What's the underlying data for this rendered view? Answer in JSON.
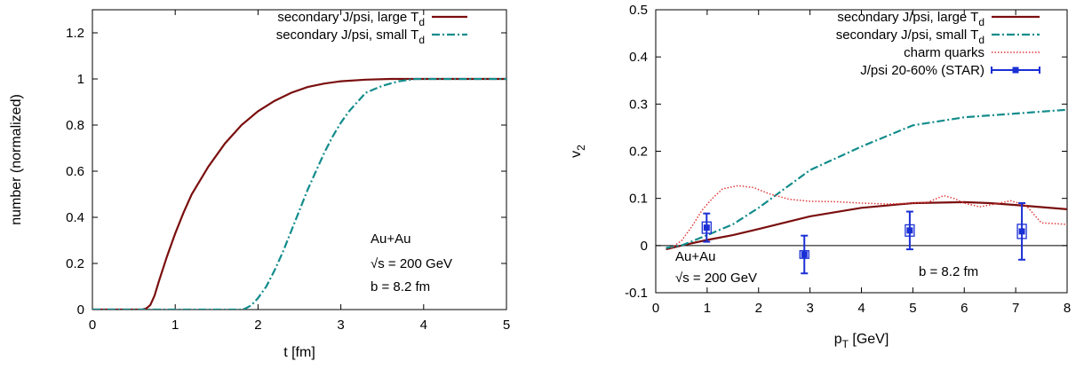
{
  "chart_data": [
    {
      "type": "line",
      "xlabel": "t [fm]",
      "ylabel": "number (normalized)",
      "xlim": [
        0,
        5
      ],
      "ylim": [
        0,
        1.3
      ],
      "xticks": [
        "0",
        "1",
        "2",
        "3",
        "4",
        "5"
      ],
      "yticks": [
        "0",
        "0.2",
        "0.4",
        "0.6",
        "0.8",
        "1",
        "1.2"
      ],
      "grid": false,
      "legend_position": "top-right",
      "annotations": [
        "Au+Au",
        "√s = 200 GeV",
        "b = 8.2 fm"
      ],
      "series": [
        {
          "name": "secondary J/psi, large T",
          "name_subscript": "d",
          "color": "#7a0e0e",
          "style": "solid",
          "points": [
            [
              0,
              0
            ],
            [
              0.6,
              0
            ],
            [
              0.65,
              0.005
            ],
            [
              0.7,
              0.02
            ],
            [
              0.75,
              0.06
            ],
            [
              0.8,
              0.12
            ],
            [
              0.9,
              0.23
            ],
            [
              1.0,
              0.33
            ],
            [
              1.1,
              0.42
            ],
            [
              1.2,
              0.5
            ],
            [
              1.4,
              0.62
            ],
            [
              1.6,
              0.72
            ],
            [
              1.8,
              0.8
            ],
            [
              2.0,
              0.86
            ],
            [
              2.2,
              0.905
            ],
            [
              2.4,
              0.94
            ],
            [
              2.6,
              0.965
            ],
            [
              2.8,
              0.98
            ],
            [
              3.0,
              0.99
            ],
            [
              3.3,
              0.997
            ],
            [
              3.6,
              1.0
            ],
            [
              5.0,
              1.0
            ]
          ]
        },
        {
          "name": "secondary J/psi, small T",
          "name_subscript": "d",
          "color": "#138c8c",
          "style": "dashdot",
          "points": [
            [
              0,
              0
            ],
            [
              1.8,
              0
            ],
            [
              1.85,
              0.005
            ],
            [
              1.9,
              0.015
            ],
            [
              1.95,
              0.03
            ],
            [
              2.0,
              0.05
            ],
            [
              2.1,
              0.1
            ],
            [
              2.2,
              0.17
            ],
            [
              2.3,
              0.25
            ],
            [
              2.4,
              0.34
            ],
            [
              2.5,
              0.43
            ],
            [
              2.6,
              0.52
            ],
            [
              2.7,
              0.6
            ],
            [
              2.8,
              0.68
            ],
            [
              2.9,
              0.75
            ],
            [
              3.0,
              0.81
            ],
            [
              3.1,
              0.86
            ],
            [
              3.2,
              0.9
            ],
            [
              3.3,
              0.94
            ],
            [
              3.5,
              0.97
            ],
            [
              3.7,
              0.99
            ],
            [
              3.9,
              1.0
            ],
            [
              5.0,
              1.0
            ]
          ]
        }
      ]
    },
    {
      "type": "line",
      "xlabel": "p",
      "xlabel_subscript": "T",
      "xlabel_suffix": " [GeV]",
      "ylabel": "v",
      "ylabel_subscript": "2",
      "xlim": [
        0,
        8
      ],
      "ylim": [
        -0.1,
        0.5
      ],
      "xticks": [
        "0",
        "1",
        "2",
        "3",
        "4",
        "5",
        "6",
        "7",
        "8"
      ],
      "yticks": [
        "-0.1",
        "0",
        "0.1",
        "0.2",
        "0.3",
        "0.4",
        "0.5"
      ],
      "grid": false,
      "legend_position": "top-right",
      "annotations": [
        "Au+Au",
        "√s = 200 GeV",
        "b = 8.2 fm"
      ],
      "series": [
        {
          "name": "secondary J/psi, large T",
          "name_subscript": "d",
          "color": "#7a0e0e",
          "style": "solid",
          "points": [
            [
              0.2,
              -0.008
            ],
            [
              0.5,
              0.0
            ],
            [
              1.0,
              0.012
            ],
            [
              1.5,
              0.022
            ],
            [
              2.0,
              0.035
            ],
            [
              3.0,
              0.062
            ],
            [
              4.0,
              0.08
            ],
            [
              5.0,
              0.09
            ],
            [
              6.0,
              0.092
            ],
            [
              6.5,
              0.09
            ],
            [
              7.0,
              0.086
            ],
            [
              8.0,
              0.077
            ]
          ]
        },
        {
          "name": "secondary J/psi, small T",
          "name_subscript": "d",
          "color": "#138c8c",
          "style": "dashdot",
          "points": [
            [
              0.2,
              -0.005
            ],
            [
              0.5,
              0.0
            ],
            [
              1.0,
              0.022
            ],
            [
              1.5,
              0.045
            ],
            [
              2.0,
              0.08
            ],
            [
              2.5,
              0.12
            ],
            [
              3.0,
              0.16
            ],
            [
              4.0,
              0.21
            ],
            [
              5.0,
              0.255
            ],
            [
              6.0,
              0.272
            ],
            [
              7.0,
              0.28
            ],
            [
              8.0,
              0.288
            ]
          ]
        },
        {
          "name": "charm quarks",
          "color": "#e03a3a",
          "style": "dotted",
          "points": [
            [
              0.3,
              -0.005
            ],
            [
              0.5,
              0.01
            ],
            [
              0.7,
              0.04
            ],
            [
              0.9,
              0.075
            ],
            [
              1.1,
              0.1
            ],
            [
              1.3,
              0.12
            ],
            [
              1.6,
              0.127
            ],
            [
              1.9,
              0.123
            ],
            [
              2.2,
              0.11
            ],
            [
              2.6,
              0.098
            ],
            [
              3.0,
              0.094
            ],
            [
              3.5,
              0.093
            ],
            [
              4.0,
              0.09
            ],
            [
              4.5,
              0.088
            ],
            [
              5.0,
              0.09
            ],
            [
              5.3,
              0.092
            ],
            [
              5.6,
              0.106
            ],
            [
              5.8,
              0.1
            ],
            [
              6.0,
              0.09
            ],
            [
              6.3,
              0.082
            ],
            [
              6.6,
              0.088
            ],
            [
              6.9,
              0.095
            ],
            [
              7.2,
              0.085
            ],
            [
              7.5,
              0.048
            ],
            [
              8.0,
              0.045
            ]
          ]
        },
        {
          "name": "J/psi 20-60% (STAR)",
          "color": "#1a2fd4",
          "style": "points-errorbars",
          "points": [
            {
              "x": 0.99,
              "y": 0.038,
              "err": 0.03,
              "sys": 0.012
            },
            {
              "x": 2.89,
              "y": -0.019,
              "err": 0.04,
              "sys": 0.008
            },
            {
              "x": 4.94,
              "y": 0.032,
              "err": 0.04,
              "sys": 0.012
            },
            {
              "x": 7.12,
              "y": 0.03,
              "err": 0.06,
              "sys": 0.015
            }
          ]
        }
      ]
    }
  ]
}
